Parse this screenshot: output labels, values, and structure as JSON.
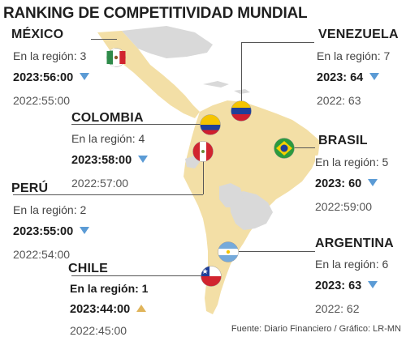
{
  "title": "RANKING DE COMPETITIVIDAD MUNDIAL",
  "source": "Fuente: Diario Financiero / Gráfico: LR-MN",
  "colors": {
    "land": "#f3dfa6",
    "land_gray": "#d9d9d9",
    "water": "#ffffff",
    "down_arrow": "#5b9bd5",
    "up_arrow": "#e0b45a"
  },
  "countries": {
    "mexico": {
      "name": "MÉXICO",
      "region": "En la región: 3",
      "rank2023": "2023:56:00",
      "rank2022": "2022:55:00",
      "trend": "down"
    },
    "venezuela": {
      "name": "VENEZUELA",
      "region": "En la región: 7",
      "rank2023": "2023: 64",
      "rank2022": "2022: 63",
      "trend": "down"
    },
    "colombia": {
      "name": "COLOMBIA",
      "region": "En la región: 4",
      "rank2023": "2023:58:00",
      "rank2022": "2022:57:00",
      "trend": "down"
    },
    "brasil": {
      "name": "BRASIL",
      "region": "En la región: 5",
      "rank2023": "2023: 60",
      "rank2022": "2022:59:00",
      "trend": "down"
    },
    "peru": {
      "name": "PERÚ",
      "region": "En la región: 2",
      "rank2023": "2023:55:00",
      "rank2022": "2022:54:00",
      "trend": "down"
    },
    "argentina": {
      "name": "ARGENTINA",
      "region": "En la región: 6",
      "rank2023": "2023: 63",
      "rank2022": "2022: 62",
      "trend": "down"
    },
    "chile": {
      "name": "CHILE",
      "region": "En la región: 1",
      "rank2023": "2023:44:00",
      "rank2022": "2022:45:00",
      "trend": "up"
    }
  }
}
